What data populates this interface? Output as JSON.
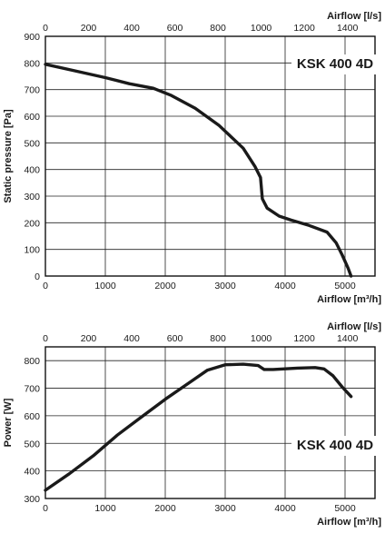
{
  "chart_data": [
    {
      "type": "line",
      "title": "KSK 400 4D",
      "xlabel": "Airflow [m³/h]",
      "x2label": "Airflow [l/s]",
      "ylabel": "Static pressure [Pa]",
      "xlim": [
        0,
        5500
      ],
      "x2lim": [
        0,
        1527.8
      ],
      "ylim": [
        0,
        900
      ],
      "xticks": [
        0,
        1000,
        2000,
        3000,
        4000,
        5000
      ],
      "x2ticks": [
        0,
        200,
        400,
        600,
        800,
        1000,
        1200,
        1400
      ],
      "yticks": [
        0,
        100,
        200,
        300,
        400,
        500,
        600,
        700,
        800,
        900
      ],
      "grid": true,
      "series": [
        {
          "x": [
            0,
            500,
            1000,
            1400,
            1800,
            2100,
            2500,
            2900,
            3300,
            3500,
            3590,
            3620,
            3700,
            3900,
            4100,
            4400,
            4700,
            4850,
            4950,
            5050,
            5100
          ],
          "y": [
            795,
            770,
            745,
            722,
            705,
            678,
            630,
            565,
            480,
            410,
            370,
            290,
            255,
            225,
            210,
            190,
            165,
            125,
            80,
            30,
            0
          ]
        }
      ]
    },
    {
      "type": "line",
      "title": "KSK 400 4D",
      "xlabel": "Airflow [m³/h]",
      "x2label": "Airflow [l/s]",
      "ylabel": "Power [W]",
      "xlim": [
        0,
        5500
      ],
      "x2lim": [
        0,
        1527.8
      ],
      "ylim": [
        300,
        850
      ],
      "xticks": [
        0,
        1000,
        2000,
        3000,
        4000,
        5000
      ],
      "x2ticks": [
        0,
        200,
        400,
        600,
        800,
        1000,
        1200,
        1400
      ],
      "yticks": [
        300,
        400,
        500,
        600,
        700,
        800
      ],
      "grid": true,
      "series": [
        {
          "x": [
            0,
            400,
            800,
            1200,
            1600,
            2000,
            2400,
            2700,
            3000,
            3300,
            3550,
            3650,
            3800,
            4200,
            4500,
            4650,
            4800,
            4950,
            5100
          ],
          "y": [
            330,
            390,
            455,
            530,
            595,
            660,
            720,
            765,
            785,
            787,
            782,
            768,
            768,
            773,
            775,
            770,
            745,
            705,
            670
          ]
        }
      ]
    }
  ]
}
